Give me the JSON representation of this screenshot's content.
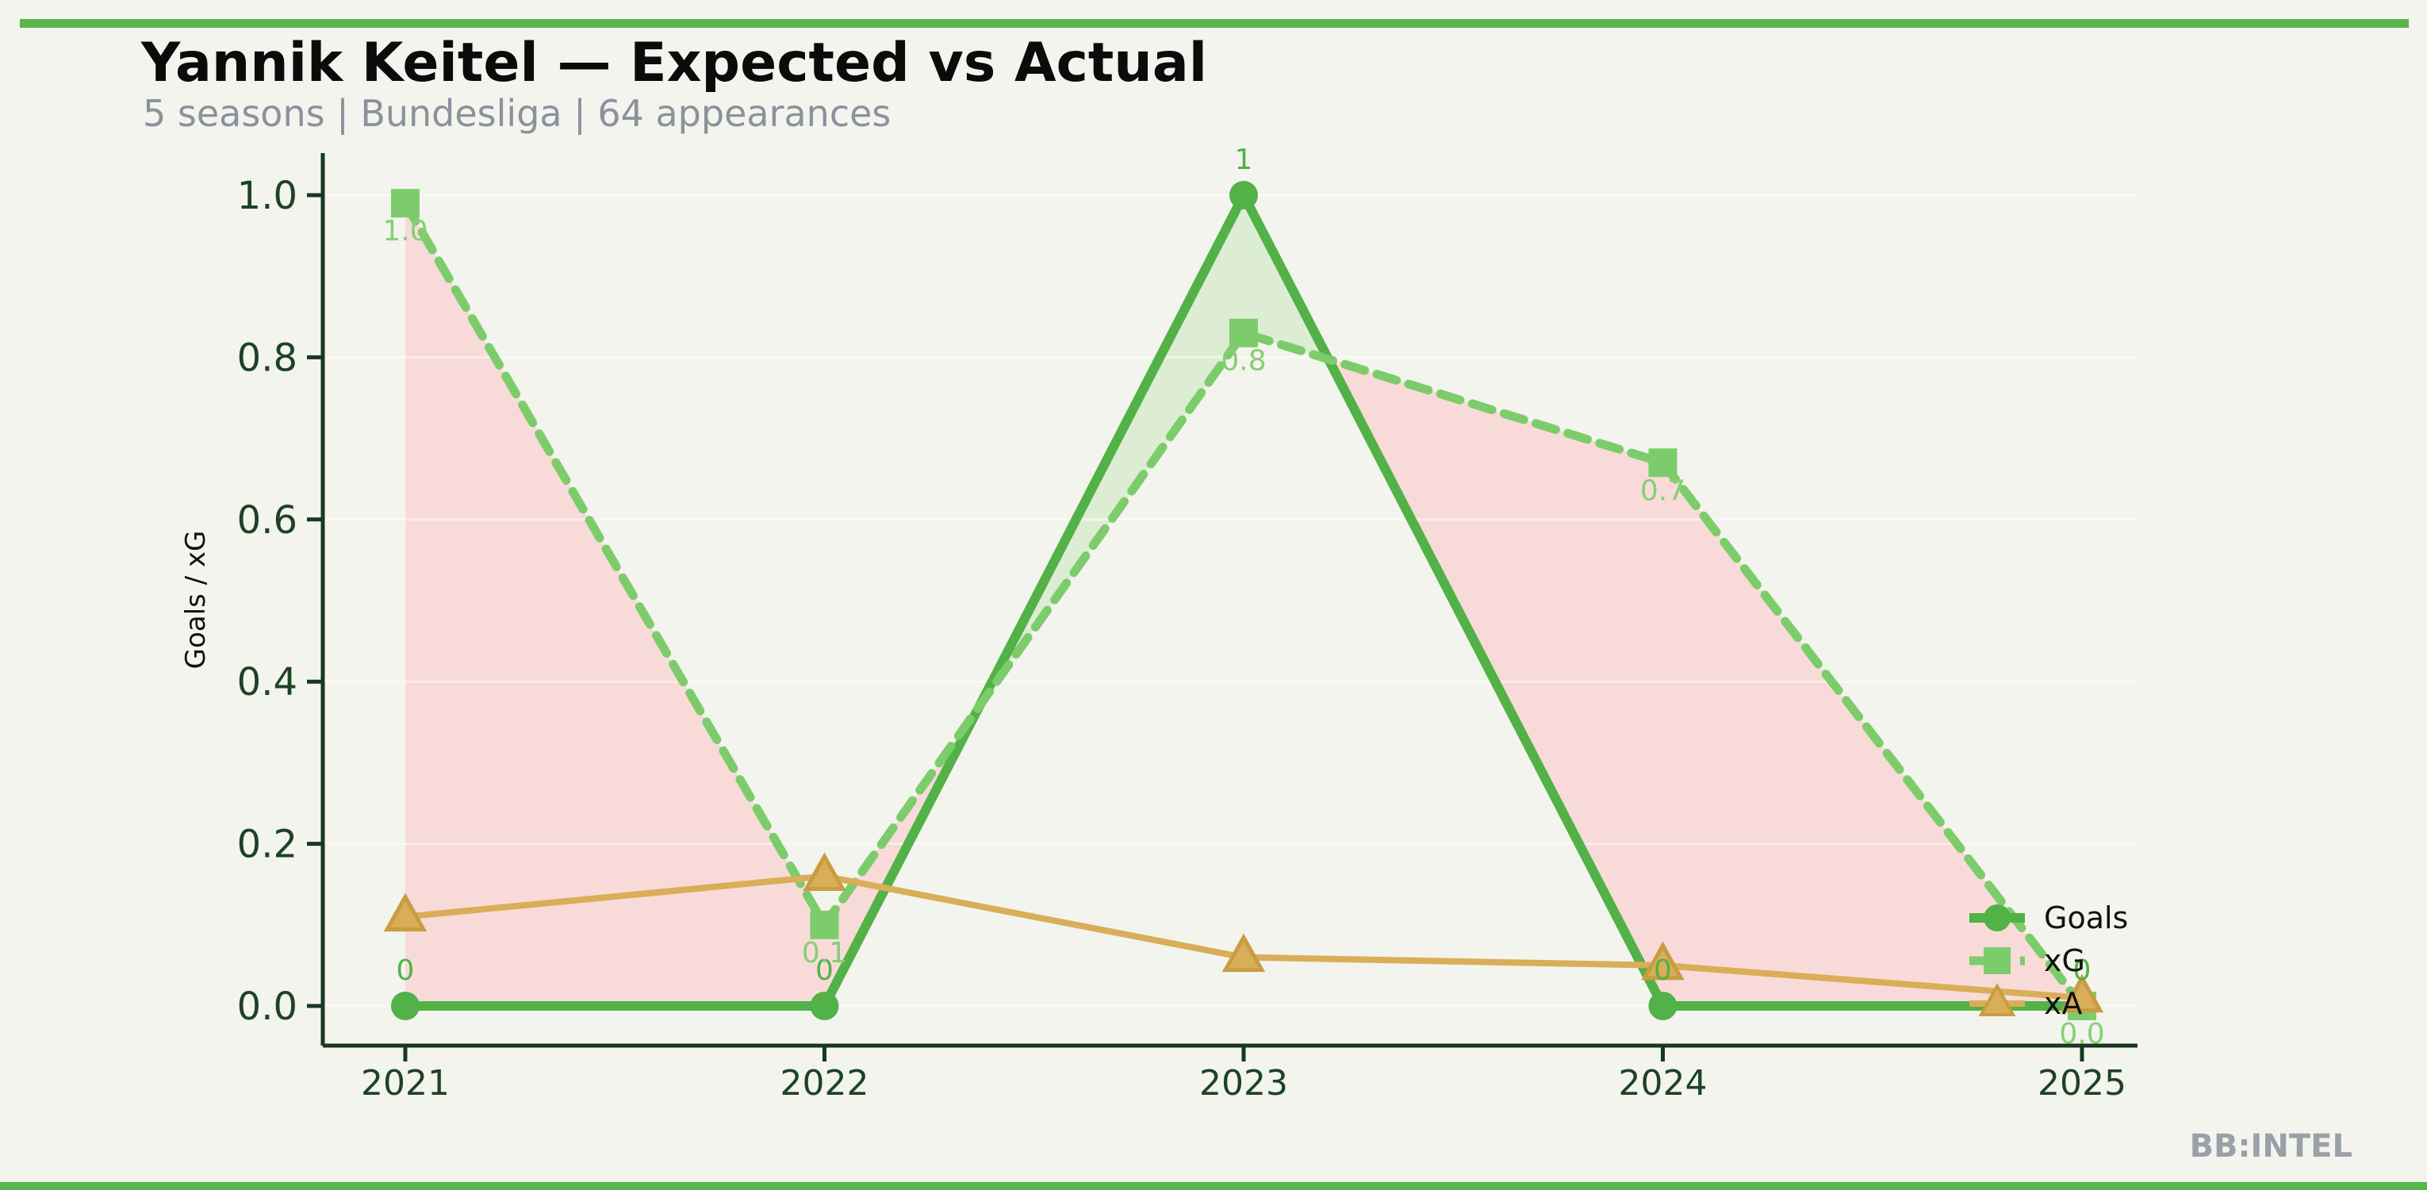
{
  "header": {
    "title": "Yannik Keitel — Expected vs Actual",
    "subtitle": "5 seasons | Bundesliga | 64 appearances"
  },
  "watermark": "BB:INTEL",
  "colors": {
    "accent_bar": "#57b54c",
    "background": "#f3f4ed",
    "axis": "#17381f",
    "tick_label": "#1d4226",
    "title": "#0b0b0b",
    "subtitle": "#8b919d",
    "watermark": "#9aa0a8",
    "goals": "#52b147",
    "xg": "#7dcc6b",
    "xg_label": "#86cf75",
    "xa": "#d9ae58",
    "xa_edge": "#c89c42",
    "fill_goals_above": "#dcedd3",
    "fill_xg_above": "#f8dbd8",
    "grid": "#ffffff"
  },
  "chart_data": {
    "type": "line",
    "title": "Yannik Keitel — Expected vs Actual",
    "xlabel": "",
    "ylabel": "Goals / xG",
    "categories": [
      "2021",
      "2022",
      "2023",
      "2024",
      "2025"
    ],
    "y_ticks": [
      "0.0",
      "0.2",
      "0.4",
      "0.6",
      "0.8",
      "1.0"
    ],
    "ylim": [
      0,
      1.05
    ],
    "grid": "faint horizontal gridlines",
    "legend_position": "right-bottom-inside",
    "fill_between": "pink where xG above Goals, green where Goals above xG",
    "series": [
      {
        "name": "Goals",
        "marker": "circle",
        "line_style": "solid",
        "color_key": "goals",
        "values": [
          0,
          0,
          1,
          0,
          0
        ],
        "point_labels": [
          "0",
          "0",
          "1",
          "0",
          "0"
        ]
      },
      {
        "name": "xG",
        "marker": "square",
        "line_style": "dashed",
        "color_key": "xg",
        "values": [
          0.99,
          0.1,
          0.83,
          0.67,
          0.0
        ],
        "point_labels": [
          "1.0",
          "0.1",
          "0.8",
          "0.7",
          "0.0"
        ]
      },
      {
        "name": "xA",
        "marker": "triangle",
        "line_style": "solid",
        "color_key": "xa",
        "values": [
          0.11,
          0.16,
          0.06,
          0.05,
          0.01
        ],
        "point_labels": []
      }
    ]
  }
}
